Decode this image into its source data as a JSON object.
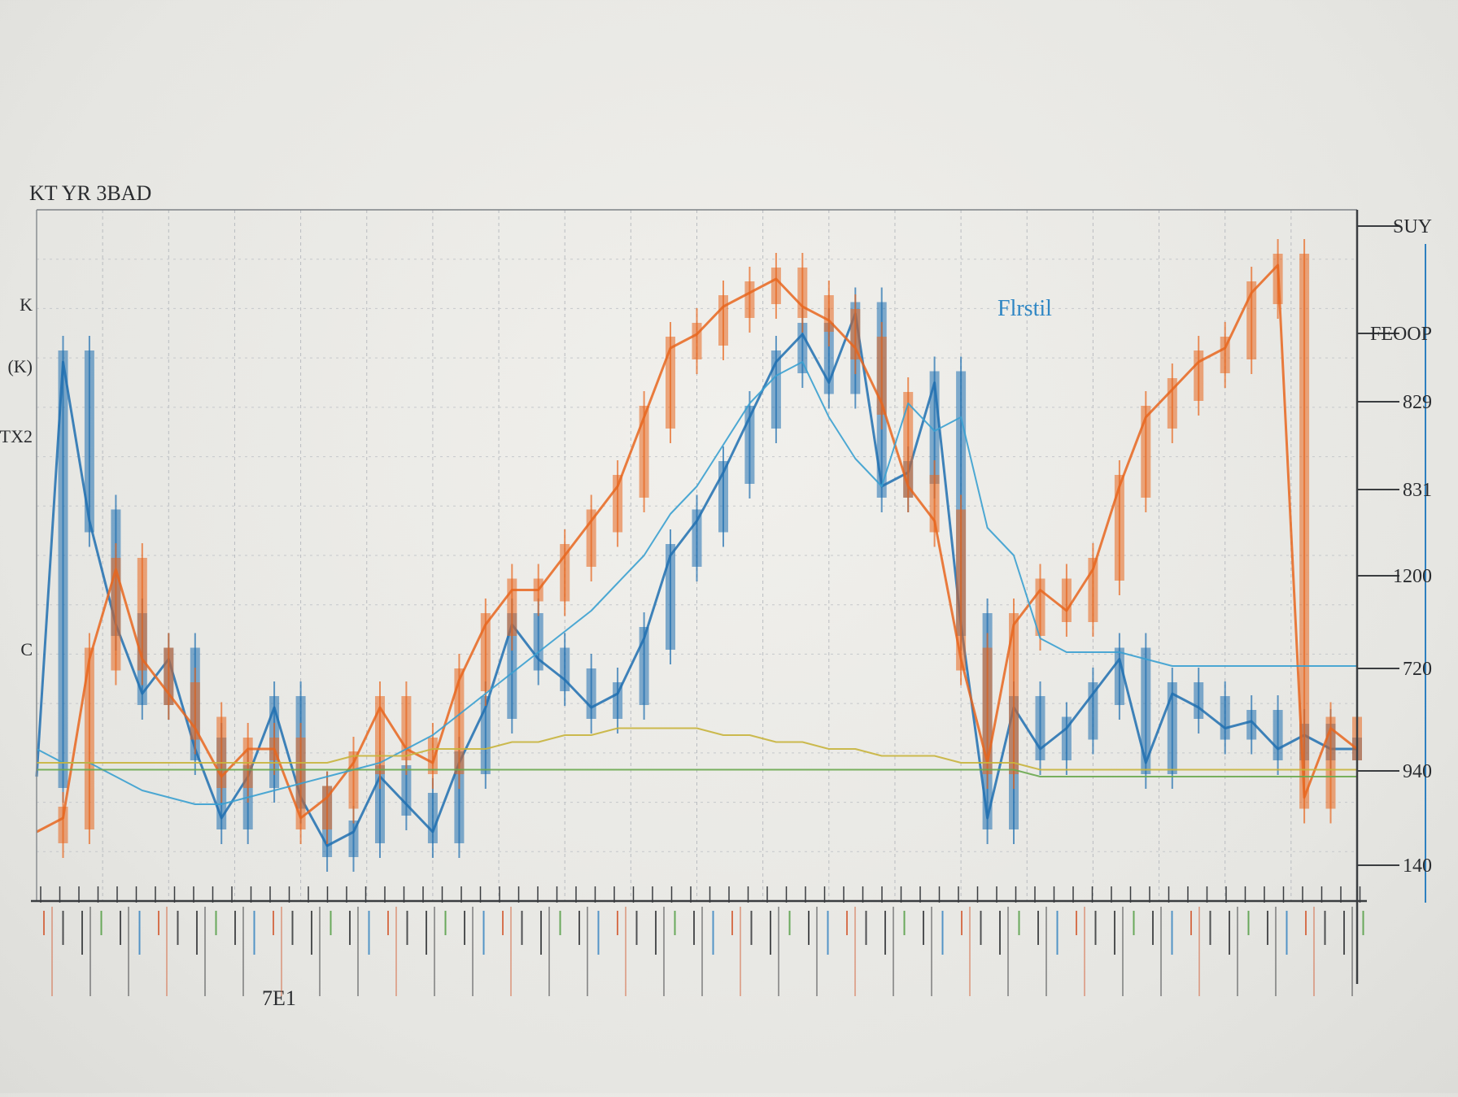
{
  "chart_data": {
    "type": "line",
    "title": "KT YR 3BAD",
    "legend_label": "Flrstil",
    "inline_label": "7E1",
    "ylabel_left": [
      "K",
      "(K)",
      "TX2",
      "C"
    ],
    "y_ticks_right": [
      "SUY",
      "FEOOP",
      "829",
      "831",
      "1200",
      "720",
      "940",
      "140"
    ],
    "ylim": [
      0,
      100
    ],
    "x": [
      0,
      2,
      4,
      6,
      8,
      10,
      12,
      14,
      16,
      18,
      20,
      22,
      24,
      26,
      28,
      30,
      32,
      34,
      36,
      38,
      40,
      42,
      44,
      46,
      48,
      50,
      52,
      54,
      56,
      58,
      60,
      62,
      64,
      66,
      68,
      70,
      72,
      74,
      76,
      78,
      80,
      82,
      84,
      86,
      88,
      90,
      92,
      94,
      96,
      98,
      100
    ],
    "xlim": [
      0,
      100
    ],
    "grid": true,
    "series": [
      {
        "color": "#1f6fb0",
        "values": [
          18,
          78,
          55,
          40,
          30,
          35,
          22,
          12,
          18,
          28,
          15,
          8,
          10,
          18,
          14,
          10,
          20,
          28,
          40,
          35,
          32,
          28,
          30,
          38,
          50,
          55,
          62,
          70,
          78,
          82,
          75,
          85,
          60,
          62,
          75,
          40,
          12,
          28,
          22,
          25,
          30,
          35,
          20,
          30,
          28,
          25,
          26,
          22,
          24,
          22,
          22
        ]
      },
      {
        "color": "#e8661e",
        "values": [
          10,
          12,
          35,
          48,
          35,
          30,
          25,
          18,
          22,
          22,
          12,
          15,
          20,
          28,
          22,
          20,
          32,
          40,
          45,
          45,
          50,
          55,
          60,
          70,
          80,
          82,
          86,
          88,
          90,
          86,
          84,
          80,
          72,
          60,
          55,
          35,
          20,
          40,
          45,
          42,
          48,
          60,
          70,
          74,
          78,
          80,
          88,
          92,
          15,
          25,
          22
        ]
      },
      {
        "color": "#3aa0d0",
        "values": [
          22,
          20,
          20,
          18,
          16,
          15,
          14,
          14,
          15,
          16,
          17,
          18,
          19,
          20,
          22,
          24,
          27,
          30,
          33,
          36,
          39,
          42,
          46,
          50,
          56,
          60,
          66,
          72,
          76,
          78,
          70,
          64,
          60,
          72,
          68,
          70,
          54,
          50,
          38,
          36,
          36,
          36,
          35,
          34,
          34,
          34,
          34,
          34,
          34,
          34,
          34
        ]
      },
      {
        "color": "#c8b43c",
        "values": [
          20,
          20,
          20,
          20,
          20,
          20,
          20,
          20,
          20,
          20,
          20,
          20,
          21,
          21,
          21,
          22,
          22,
          22,
          23,
          23,
          24,
          24,
          25,
          25,
          25,
          25,
          24,
          24,
          23,
          23,
          22,
          22,
          21,
          21,
          21,
          20,
          20,
          20,
          19,
          19,
          19,
          19,
          19,
          19,
          19,
          19,
          19,
          19,
          19,
          19,
          19
        ]
      },
      {
        "color": "#6aa84f",
        "values": [
          19,
          19,
          19,
          19,
          19,
          19,
          19,
          19,
          19,
          19,
          19,
          19,
          19,
          19,
          19,
          19,
          19,
          19,
          19,
          19,
          19,
          19,
          19,
          19,
          19,
          19,
          19,
          19,
          19,
          19,
          19,
          19,
          19,
          19,
          19,
          19,
          19,
          19,
          18,
          18,
          18,
          18,
          18,
          18,
          18,
          18,
          18,
          18,
          18,
          18,
          18
        ]
      }
    ]
  }
}
